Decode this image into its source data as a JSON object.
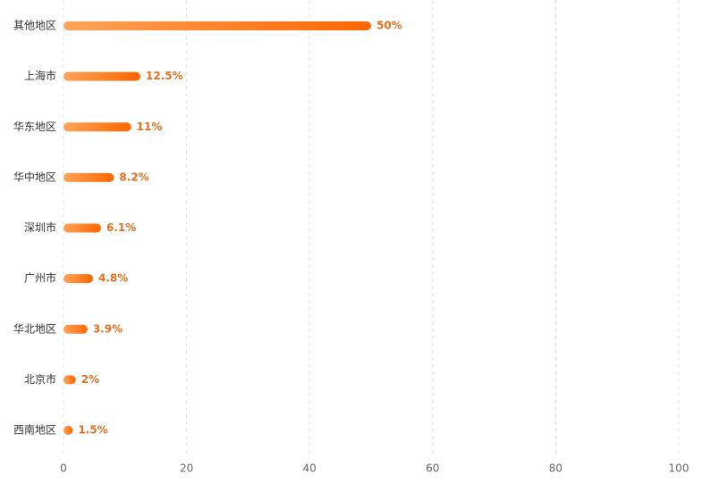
{
  "chart_data": {
    "type": "bar",
    "orientation": "horizontal",
    "categories": [
      "其他地区",
      "上海市",
      "华东地区",
      "华中地区",
      "深圳市",
      "广州市",
      "华北地区",
      "北京市",
      "西南地区"
    ],
    "values": [
      50,
      12.5,
      11,
      8.2,
      6.1,
      4.8,
      3.9,
      2,
      1.5
    ],
    "value_labels": [
      "50%",
      "12.5%",
      "11%",
      "8.2%",
      "6.1%",
      "4.8%",
      "3.9%",
      "2%",
      "1.5%"
    ],
    "color": [
      "#ffa459",
      "#ff6600"
    ],
    "label_color": "#e07020",
    "xlim": [
      0,
      100
    ],
    "xticks": [
      0,
      20,
      40,
      60,
      80,
      100
    ],
    "grid": true
  }
}
